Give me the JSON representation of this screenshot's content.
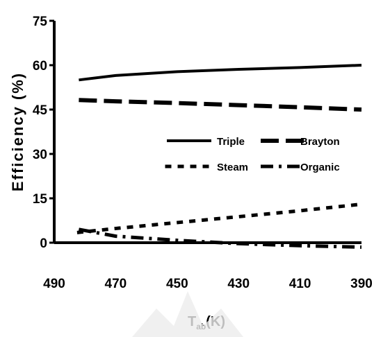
{
  "chart_data": {
    "type": "line",
    "title": "",
    "xlabel": "T",
    "xlabel_sub": "ab",
    "xlabel_unit": "(K)",
    "ylabel": "Efficiency (%)",
    "x_ticks": [
      "490",
      "470",
      "450",
      "430",
      "410",
      "390"
    ],
    "y_ticks": [
      "0",
      "15",
      "30",
      "45",
      "60",
      "75"
    ],
    "xlim": [
      490,
      390
    ],
    "ylim": [
      0,
      75
    ],
    "grid": false,
    "legend_position": "center-right",
    "series": [
      {
        "name": "Triple",
        "style": "solid",
        "x": [
          482,
          470,
          450,
          430,
          410,
          390
        ],
        "y": [
          55.0,
          56.5,
          57.8,
          58.6,
          59.2,
          60.0
        ]
      },
      {
        "name": "Brayton",
        "style": "long-dash",
        "x": [
          482,
          470,
          450,
          430,
          410,
          390
        ],
        "y": [
          48.2,
          47.8,
          47.2,
          46.5,
          45.8,
          45.0
        ]
      },
      {
        "name": "Steam",
        "style": "dotted",
        "x": [
          482,
          470,
          450,
          430,
          410,
          390
        ],
        "y": [
          3.5,
          4.8,
          6.8,
          8.8,
          10.8,
          13.0
        ]
      },
      {
        "name": "Organic",
        "style": "dash-dot",
        "x": [
          482,
          470,
          450,
          430,
          410,
          390
        ],
        "y": [
          4.5,
          2.2,
          0.8,
          -0.3,
          -1.0,
          -1.5
        ]
      }
    ]
  }
}
